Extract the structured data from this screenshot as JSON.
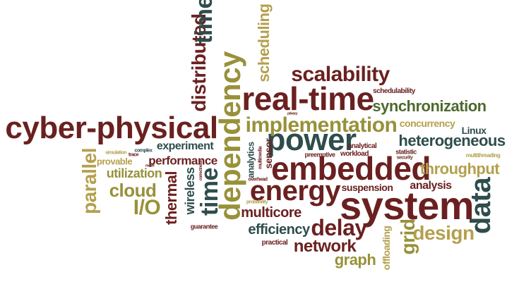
{
  "palette": {
    "maroon": "#6b2020",
    "olive": "#98913a",
    "teal": "#2e4d4c",
    "gold": "#b4a04d",
    "green": "#4f6a2e",
    "brown": "#6b3a2a"
  },
  "words": {
    "cyber_physical": "cyber-physical",
    "real_time": "real-time",
    "embedded": "embedded",
    "system": "system",
    "energy": "energy",
    "power": "power",
    "dependency": "dependency",
    "implementation": "implementation",
    "scalability": "scalability",
    "synchronization": "synchronization",
    "heterogeneous": "heterogeneous",
    "distributed": "distributed",
    "time": "time",
    "scheduling": "scheduling",
    "data": "data",
    "throughput": "throughput",
    "delay": "delay",
    "network": "network",
    "design": "design",
    "grid": "grid",
    "graph": "graph",
    "multicore": "multicore",
    "efficiency": "efficiency",
    "parallel": "parallel",
    "cloud": "cloud",
    "io": "I/O",
    "thermal": "thermal",
    "wireless": "wireless",
    "performance": "performance",
    "utilization": "utilization",
    "experiment": "experiment",
    "analysis": "analysis",
    "suspension": "suspension",
    "concurrency": "concurrency",
    "linux": "Linux",
    "offloading": "offloading",
    "schedulability": "schedulability",
    "analytical": "analytical",
    "workload": "workload",
    "analytics": "analytics",
    "sensor": "sensor",
    "multimedia": "multimedia",
    "preemptive": "preemptive",
    "statistic": "statistic",
    "security": "security",
    "multithreading": "multithreading",
    "overhead": "overhead",
    "probability": "probability",
    "guarantee": "guarantee",
    "practical": "practical",
    "provable": "provable",
    "simulation": "simulation",
    "trace": "trace",
    "complex": "complex",
    "model": "model",
    "correctness": "correctness",
    "privacy": "privacy"
  }
}
